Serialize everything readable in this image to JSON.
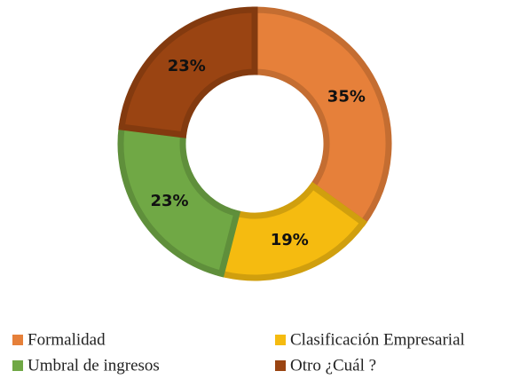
{
  "chart_data": {
    "type": "donut",
    "categories": [
      "Formalidad",
      "Clasificación Empresarial",
      "Umbral de ingresos",
      "Otro ¿Cuál ?"
    ],
    "values": [
      35,
      19,
      23,
      23
    ],
    "value_labels": [
      "35%",
      "19%",
      "23%",
      "23%"
    ],
    "colors": [
      "#e6803a",
      "#f5bb10",
      "#70a845",
      "#9a4412"
    ],
    "legend": "bottom"
  }
}
